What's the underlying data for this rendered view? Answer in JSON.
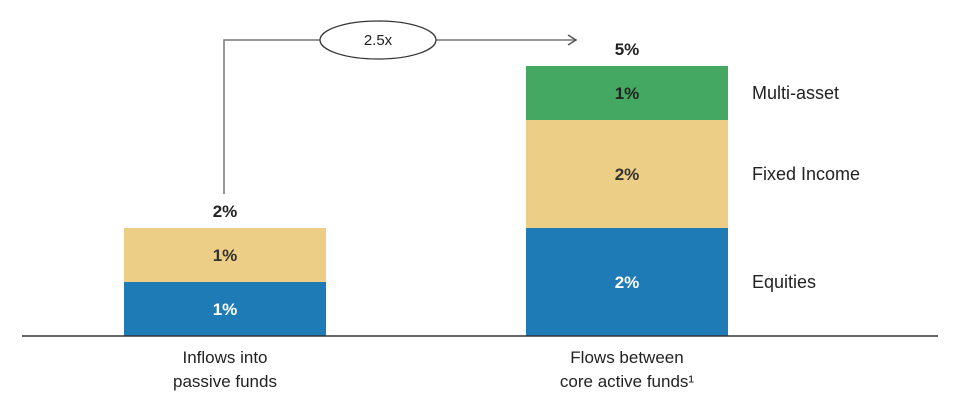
{
  "chart_data": {
    "type": "bar",
    "stacked": true,
    "categories": [
      [
        "Inflows into",
        "passive funds"
      ],
      [
        "Flows between",
        "core active funds¹"
      ]
    ],
    "series": [
      {
        "name": "Equities",
        "values": [
          1,
          2
        ],
        "labels": [
          "1%",
          "2%"
        ],
        "color": "#1f7bb6",
        "text_color": "#ffffff"
      },
      {
        "name": "Fixed Income",
        "values": [
          1,
          2
        ],
        "labels": [
          "1%",
          "2%"
        ],
        "color": "#edce86",
        "text_color": "#333333"
      },
      {
        "name": "Multi-asset",
        "values": [
          null,
          1
        ],
        "labels": [
          null,
          "1%"
        ],
        "color": "#44a862",
        "text_color": "#222222"
      }
    ],
    "totals": [
      "2%",
      "5%"
    ],
    "annotation": {
      "text": "2.5x",
      "from": 0,
      "to": 1
    },
    "legend_position": "right",
    "title": "",
    "xlabel": "",
    "ylabel": ""
  }
}
